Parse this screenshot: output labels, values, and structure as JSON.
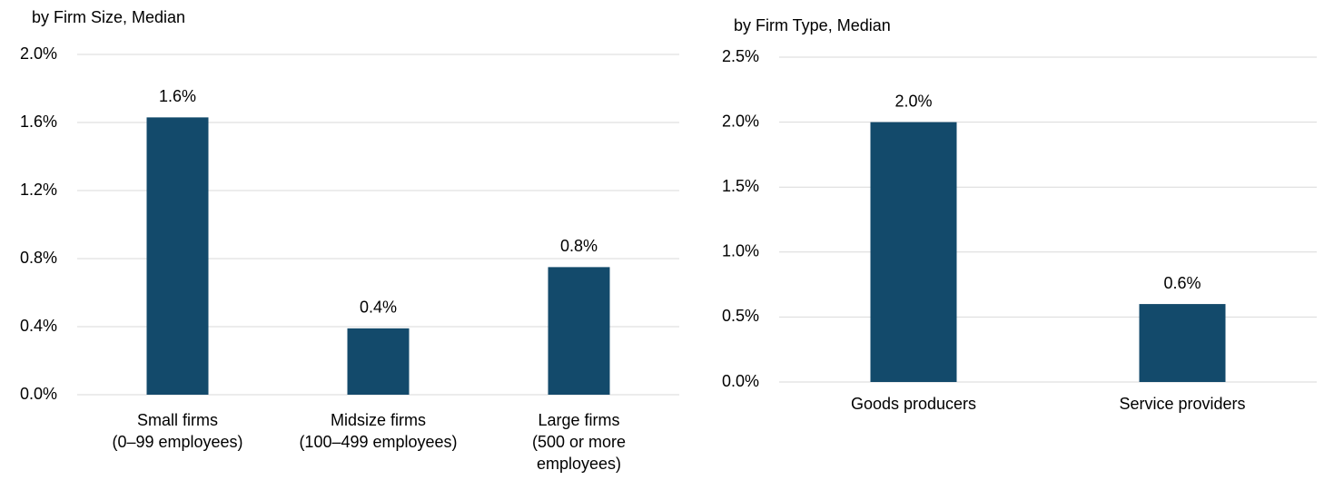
{
  "chart_data": [
    {
      "type": "bar",
      "title": "by Firm Size, Median",
      "categories": [
        [
          "Small firms",
          "(0–99 employees)"
        ],
        [
          "Midsize firms",
          "(100–499 employees)"
        ],
        [
          "Large firms",
          "(500 or more",
          "employees)"
        ]
      ],
      "values": [
        1.63,
        0.39,
        0.75
      ],
      "value_labels": [
        "1.6%",
        "0.4%",
        "0.8%"
      ],
      "color": "#134a6b",
      "ylim": [
        0,
        2.0
      ],
      "yticks": [
        {
          "value": 0,
          "label": "0.0%"
        },
        {
          "value": 0.4,
          "label": "0.4%"
        },
        {
          "value": 0.8,
          "label": "0.8%"
        },
        {
          "value": 1.2,
          "label": "1.2%"
        },
        {
          "value": 1.6,
          "label": "1.6%"
        },
        {
          "value": 2.0,
          "label": "2.0%"
        }
      ],
      "grid": true
    },
    {
      "type": "bar",
      "title": "by Firm Type, Median",
      "categories": [
        "Goods producers",
        "Service providers"
      ],
      "values": [
        2.0,
        0.6
      ],
      "value_labels": [
        "2.0%",
        "0.6%"
      ],
      "color": "#134a6b",
      "ylim": [
        0,
        2.5
      ],
      "yticks": [
        {
          "value": 0,
          "label": "0.0%"
        },
        {
          "value": 0.5,
          "label": "0.5%"
        },
        {
          "value": 1.0,
          "label": "1.0%"
        },
        {
          "value": 1.5,
          "label": "1.5%"
        },
        {
          "value": 2.0,
          "label": "2.0%"
        },
        {
          "value": 2.5,
          "label": "2.5%"
        }
      ],
      "grid": true
    }
  ]
}
